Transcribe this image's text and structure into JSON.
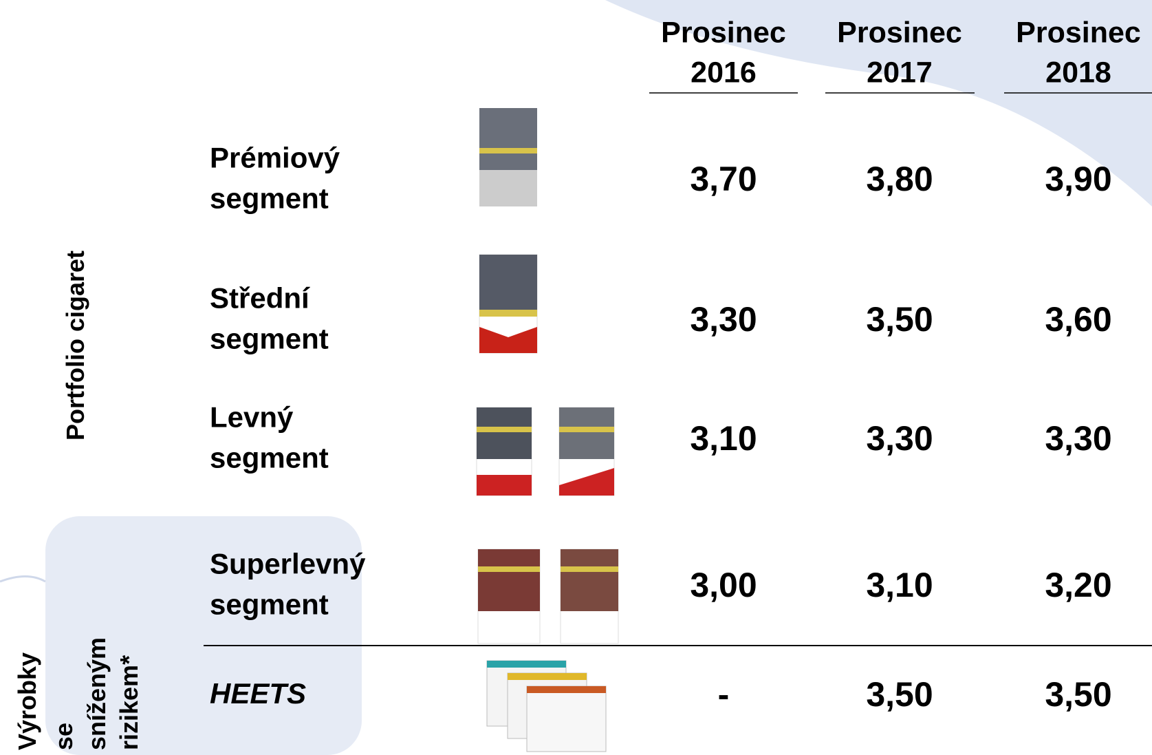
{
  "header": {
    "columns": [
      [
        "Prosinec",
        "2016"
      ],
      [
        "Prosinec",
        "2017"
      ],
      [
        "Prosinec",
        "2018"
      ]
    ]
  },
  "side_labels": {
    "portfolio": "Portfolio cigaret",
    "reduced_risk": [
      "Výrobky",
      "se",
      "sníženým",
      "rizikem*"
    ]
  },
  "table": {
    "rows": [
      {
        "label": [
          "Prémiový",
          "segment"
        ],
        "values": [
          "3,70",
          "3,80",
          "3,90"
        ]
      },
      {
        "label": [
          "Střední",
          "segment"
        ],
        "values": [
          "3,30",
          "3,50",
          "3,60"
        ]
      },
      {
        "label": [
          "Levný",
          "segment"
        ],
        "values": [
          "3,10",
          "3,30",
          "3,30"
        ]
      },
      {
        "label": [
          "Superlevný",
          "segment"
        ],
        "values": [
          "3,00",
          "3,10",
          "3,20"
        ]
      },
      {
        "label": [
          "HEETS"
        ],
        "values": [
          "-",
          "3,50",
          "3,50"
        ]
      }
    ]
  }
}
